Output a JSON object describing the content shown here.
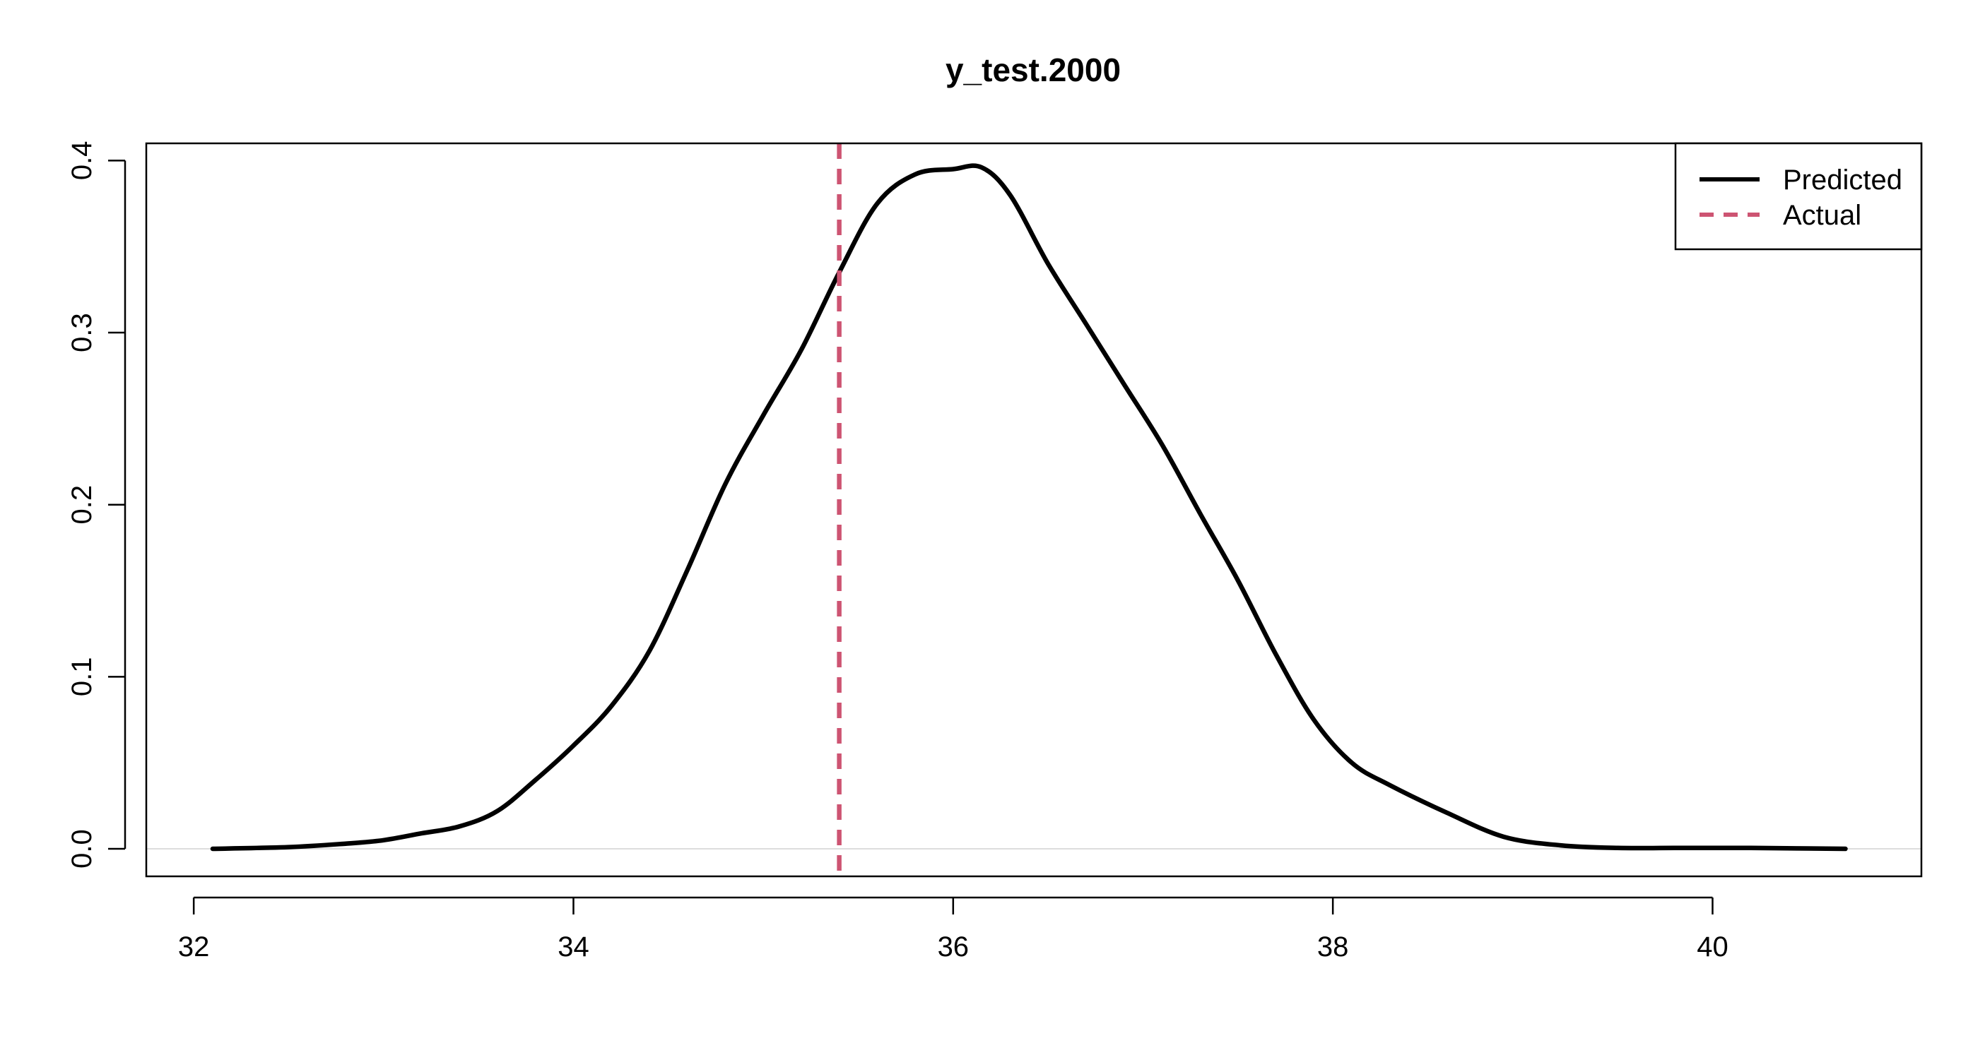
{
  "chart_data": {
    "type": "line",
    "title": "y_test.2000",
    "xlabel": "",
    "ylabel": "",
    "xlim": [
      31.75,
      41.1
    ],
    "ylim": [
      -0.016,
      0.41
    ],
    "x_ticks": [
      32,
      34,
      36,
      38,
      40
    ],
    "x_tick_labels": [
      "32",
      "34",
      "36",
      "38",
      "40"
    ],
    "y_ticks": [
      0.0,
      0.1,
      0.2,
      0.3,
      0.4
    ],
    "y_tick_labels": [
      "0.0",
      "0.1",
      "0.2",
      "0.3",
      "0.4"
    ],
    "grid": false,
    "baseline": 0,
    "legend": {
      "position": "top-right",
      "entries": [
        {
          "label": "Predicted",
          "color": "#000000",
          "style": "solid"
        },
        {
          "label": "Actual",
          "color": "#cd5472",
          "style": "dashed"
        }
      ]
    },
    "series": [
      {
        "name": "Predicted",
        "color": "#000000",
        "style": "solid",
        "x": [
          32.1,
          32.5,
          32.8,
          33.0,
          33.2,
          33.4,
          33.6,
          33.8,
          34.0,
          34.2,
          34.4,
          34.6,
          34.8,
          35.0,
          35.2,
          35.4,
          35.6,
          35.8,
          36.0,
          36.15,
          36.3,
          36.5,
          36.7,
          36.9,
          37.1,
          37.3,
          37.5,
          37.7,
          37.9,
          38.1,
          38.3,
          38.6,
          38.9,
          39.2,
          39.5,
          39.8,
          40.2,
          40.5,
          40.7
        ],
        "y": [
          0.0,
          0.001,
          0.003,
          0.005,
          0.009,
          0.013,
          0.022,
          0.04,
          0.06,
          0.083,
          0.115,
          0.162,
          0.212,
          0.252,
          0.29,
          0.335,
          0.375,
          0.392,
          0.395,
          0.396,
          0.38,
          0.34,
          0.305,
          0.27,
          0.235,
          0.195,
          0.156,
          0.113,
          0.075,
          0.05,
          0.037,
          0.021,
          0.007,
          0.002,
          0.0005,
          0.0005,
          0.0005,
          0.0002,
          0.0
        ]
      },
      {
        "name": "Actual",
        "color": "#cd5472",
        "style": "dashed",
        "x_value": 35.4
      }
    ]
  }
}
